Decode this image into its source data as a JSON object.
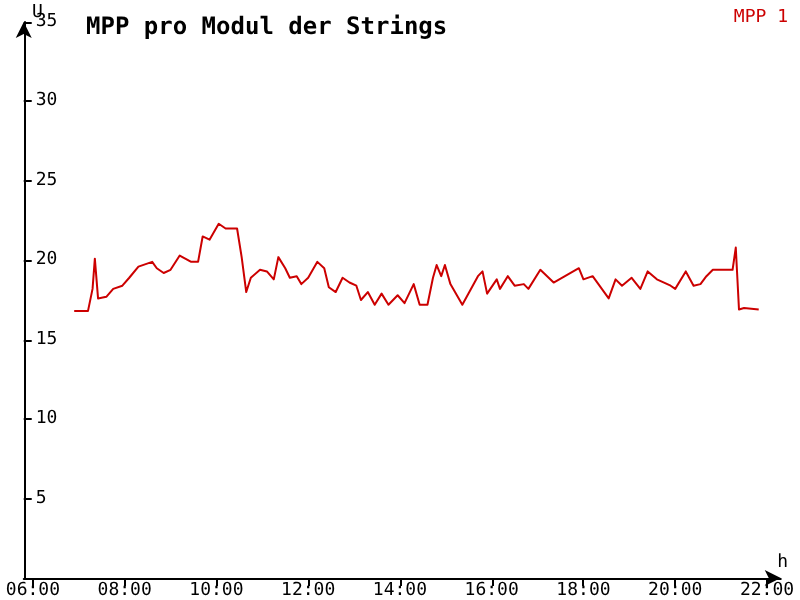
{
  "chart_data": {
    "type": "line",
    "title": "MPP pro Modul der Strings",
    "xlabel": "h",
    "ylabel": "U",
    "xlim": [
      5.8,
      22.3
    ],
    "xticks": [
      {
        "value": 6,
        "label": "06:00"
      },
      {
        "value": 8,
        "label": "08:00"
      },
      {
        "value": 10,
        "label": "10:00"
      },
      {
        "value": 12,
        "label": "12:00"
      },
      {
        "value": 14,
        "label": "14:00"
      },
      {
        "value": 16,
        "label": "16:00"
      },
      {
        "value": 18,
        "label": "18:00"
      },
      {
        "value": 20,
        "label": "20:00"
      },
      {
        "value": 22,
        "label": "22:00"
      }
    ],
    "ylim": [
      0,
      35
    ],
    "yticks": [
      5,
      10,
      15,
      20,
      25,
      30,
      35
    ],
    "grid": false,
    "legend": "top right",
    "marker": "none",
    "line_style": "solid",
    "x": [
      6.9,
      7.2,
      7.3,
      7.35,
      7.42,
      7.6,
      7.75,
      7.95,
      8.1,
      8.3,
      8.6,
      8.7,
      8.85,
      9.0,
      9.2,
      9.45,
      9.6,
      9.7,
      9.85,
      10.05,
      10.2,
      10.45,
      10.55,
      10.65,
      10.75,
      10.95,
      11.1,
      11.25,
      11.35,
      11.5,
      11.6,
      11.75,
      11.85,
      12.0,
      12.2,
      12.35,
      12.45,
      12.6,
      12.75,
      12.9,
      13.05,
      13.15,
      13.3,
      13.45,
      13.6,
      13.75,
      13.95,
      14.1,
      14.3,
      14.43,
      14.6,
      14.72,
      14.8,
      14.9,
      14.98,
      15.1,
      15.36,
      15.7,
      15.8,
      15.9,
      16.11,
      16.18,
      16.35,
      16.5,
      16.7,
      16.8,
      17.06,
      17.35,
      17.9,
      18.0,
      18.2,
      18.55,
      18.7,
      18.84,
      19.05,
      19.24,
      19.4,
      19.6,
      19.9,
      20.0,
      20.23,
      20.4,
      20.55,
      20.68,
      20.82,
      21.25,
      21.32,
      21.39,
      21.5,
      21.82
    ],
    "series": [
      {
        "name": "MPP 1",
        "color": "#cc0000",
        "values": [
          16.8,
          16.8,
          18.2,
          20.1,
          17.6,
          17.7,
          18.2,
          18.4,
          18.9,
          19.6,
          19.9,
          19.5,
          19.2,
          19.4,
          20.3,
          19.9,
          19.9,
          21.5,
          21.3,
          22.3,
          22.0,
          22.0,
          20.2,
          18.0,
          18.9,
          19.4,
          19.3,
          18.8,
          20.2,
          19.5,
          18.9,
          19.0,
          18.5,
          18.9,
          19.9,
          19.5,
          18.3,
          18.0,
          18.9,
          18.6,
          18.4,
          17.5,
          18.0,
          17.2,
          17.9,
          17.2,
          17.8,
          17.3,
          18.5,
          17.2,
          17.2,
          18.9,
          19.7,
          19.0,
          19.7,
          18.5,
          17.2,
          19.0,
          19.3,
          17.9,
          18.8,
          18.2,
          19.0,
          18.4,
          18.5,
          18.2,
          19.4,
          18.6,
          19.5,
          18.8,
          19.0,
          17.6,
          18.8,
          18.4,
          18.9,
          18.2,
          19.3,
          18.8,
          18.4,
          18.2,
          19.3,
          18.4,
          18.5,
          19.0,
          19.4,
          19.4,
          20.8,
          16.9,
          17.0,
          16.9
        ]
      }
    ]
  }
}
